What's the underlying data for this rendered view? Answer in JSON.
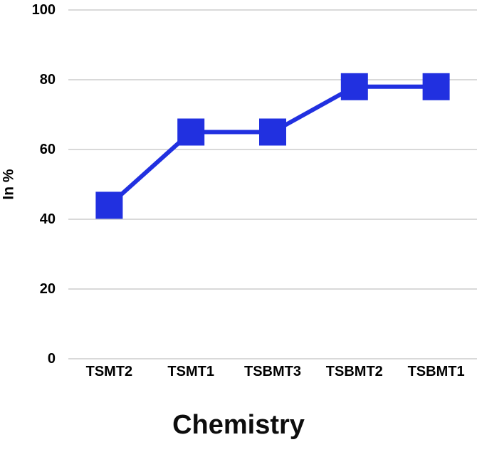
{
  "chart_data": {
    "type": "line",
    "title": "Chemistry",
    "ylabel": "In %",
    "xlabel": "",
    "categories": [
      "TSMT2",
      "TSMT1",
      "TSBMT3",
      "TSBMT2",
      "TSBMT1"
    ],
    "series": [
      {
        "name": "Chemistry",
        "values": [
          44,
          65,
          65,
          78,
          78
        ]
      }
    ],
    "ylim": [
      0,
      100
    ],
    "yticks": [
      0,
      20,
      40,
      60,
      80,
      100
    ],
    "grid": true,
    "legend_position": "none",
    "marker": "square",
    "marker_size": 38,
    "line_width": 6,
    "line_color": "#2130e0",
    "gridline_color": "#d9d9d9",
    "text_color": "#000000"
  }
}
